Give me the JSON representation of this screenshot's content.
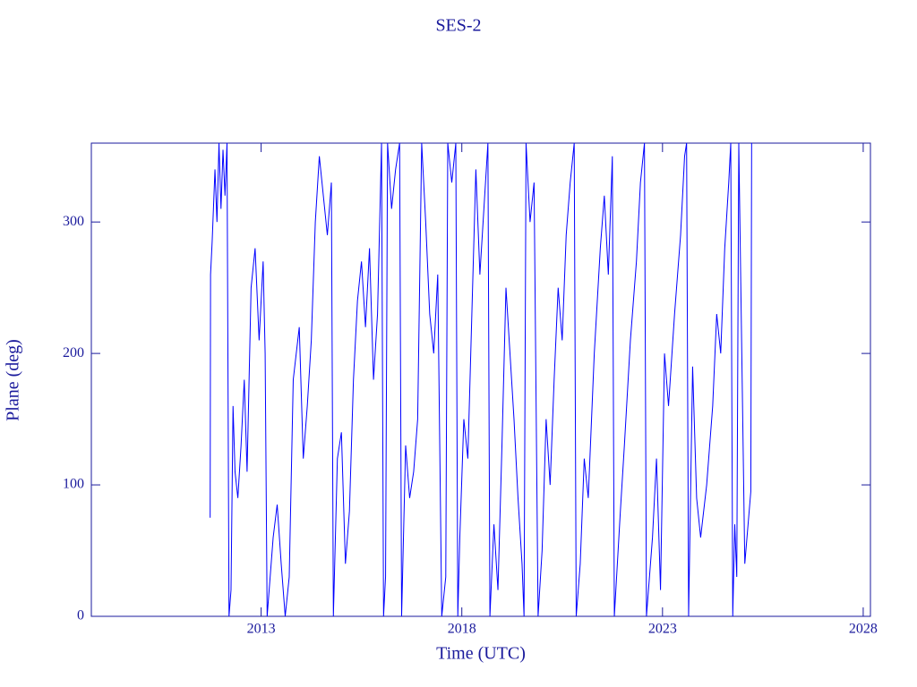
{
  "chart_data": {
    "type": "line",
    "title": "SES-2",
    "x_label": "Time (UTC)",
    "y_label": "Plane (deg)",
    "color": "#0000ff",
    "xlim": [
      2008.77,
      2028.18
    ],
    "ylim": [
      0,
      360
    ],
    "xticks": [
      2013,
      2018,
      2023,
      2028
    ],
    "yticks": [
      0,
      100,
      200,
      300
    ],
    "x": [
      2011.73,
      2011.74,
      2011.78,
      2011.85,
      2011.9,
      2011.95,
      2012.0,
      2012.05,
      2012.1,
      2012.15,
      2012.2,
      2012.25,
      2012.3,
      2012.35,
      2012.42,
      2012.5,
      2012.58,
      2012.65,
      2012.75,
      2012.85,
      2012.95,
      2013.05,
      2013.1,
      2013.15,
      2013.3,
      2013.4,
      2013.5,
      2013.6,
      2013.7,
      2013.8,
      2013.95,
      2014.05,
      2014.15,
      2014.25,
      2014.35,
      2014.45,
      2014.55,
      2014.65,
      2014.75,
      2014.8,
      2014.9,
      2015.0,
      2015.1,
      2015.2,
      2015.3,
      2015.4,
      2015.5,
      2015.6,
      2015.7,
      2015.8,
      2015.9,
      2016.0,
      2016.05,
      2016.1,
      2016.15,
      2016.25,
      2016.35,
      2016.45,
      2016.5,
      2016.6,
      2016.7,
      2016.8,
      2016.9,
      2017.0,
      2017.1,
      2017.2,
      2017.3,
      2017.4,
      2017.5,
      2017.6,
      2017.65,
      2017.75,
      2017.85,
      2017.9,
      2017.95,
      2018.05,
      2018.15,
      2018.25,
      2018.35,
      2018.45,
      2018.55,
      2018.65,
      2018.7,
      2018.8,
      2018.9,
      2019.0,
      2019.1,
      2019.2,
      2019.3,
      2019.4,
      2019.5,
      2019.55,
      2019.6,
      2019.7,
      2019.8,
      2019.9,
      2020.0,
      2020.1,
      2020.2,
      2020.3,
      2020.4,
      2020.5,
      2020.6,
      2020.7,
      2020.8,
      2020.85,
      2020.95,
      2021.05,
      2021.15,
      2021.3,
      2021.45,
      2021.55,
      2021.65,
      2021.75,
      2021.8,
      2021.95,
      2022.05,
      2022.2,
      2022.35,
      2022.45,
      2022.55,
      2022.6,
      2022.75,
      2022.85,
      2022.95,
      2023.05,
      2023.15,
      2023.3,
      2023.45,
      2023.55,
      2023.6,
      2023.65,
      2023.75,
      2023.85,
      2023.95,
      2024.1,
      2024.25,
      2024.35,
      2024.45,
      2024.55,
      2024.65,
      2024.7,
      2024.75,
      2024.8,
      2024.85,
      2024.9,
      2025.05,
      2025.2,
      2025.22
    ],
    "values": [
      75,
      260,
      285,
      340,
      300,
      360,
      310,
      355,
      320,
      360,
      0,
      20,
      160,
      110,
      90,
      130,
      180,
      110,
      250,
      280,
      210,
      270,
      200,
      0,
      60,
      85,
      40,
      0,
      30,
      180,
      220,
      120,
      160,
      210,
      300,
      350,
      320,
      290,
      330,
      0,
      120,
      140,
      40,
      80,
      180,
      240,
      270,
      220,
      280,
      180,
      230,
      360,
      0,
      30,
      360,
      310,
      340,
      360,
      0,
      130,
      90,
      110,
      150,
      360,
      300,
      230,
      200,
      260,
      0,
      30,
      360,
      330,
      360,
      0,
      60,
      150,
      120,
      230,
      340,
      260,
      310,
      360,
      0,
      70,
      20,
      130,
      250,
      200,
      150,
      90,
      40,
      0,
      360,
      300,
      330,
      0,
      50,
      150,
      100,
      180,
      250,
      210,
      290,
      330,
      360,
      0,
      40,
      120,
      90,
      200,
      280,
      320,
      260,
      350,
      0,
      80,
      130,
      210,
      270,
      330,
      360,
      0,
      60,
      120,
      20,
      200,
      160,
      230,
      290,
      350,
      360,
      0,
      190,
      90,
      60,
      100,
      160,
      230,
      200,
      280,
      330,
      360,
      0,
      70,
      30,
      360,
      40,
      95,
      360
    ]
  }
}
